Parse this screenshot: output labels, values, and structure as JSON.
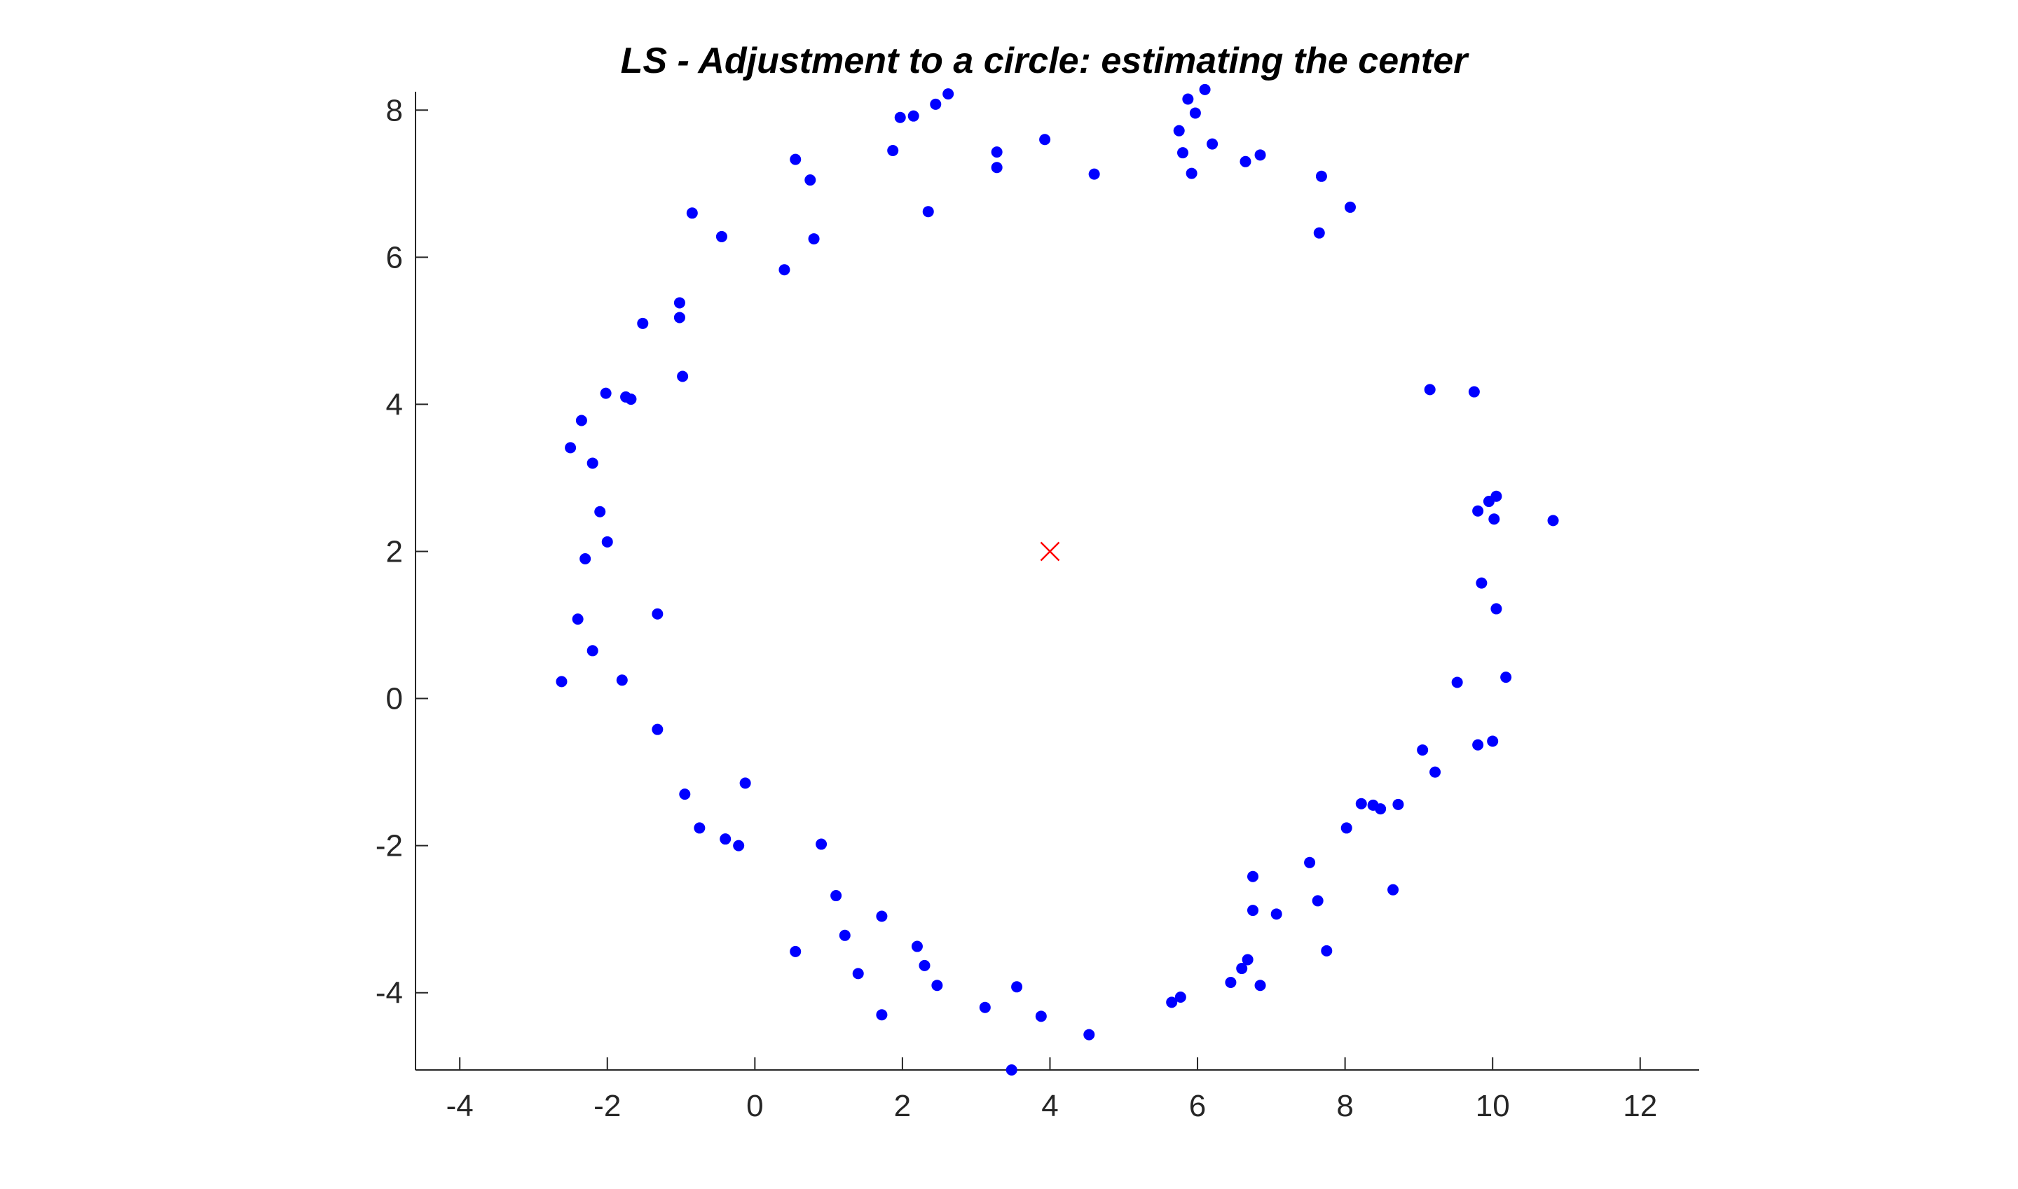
{
  "chart_data": {
    "type": "scatter",
    "title": "LS - Adjustment to a circle: estimating the center",
    "xlabel": "",
    "ylabel": "",
    "xlim": [
      -4.6,
      12.8
    ],
    "ylim": [
      -5.05,
      8.25
    ],
    "xticks": [
      -4,
      -2,
      0,
      2,
      4,
      6,
      8,
      10,
      12
    ],
    "yticks": [
      -4,
      -2,
      0,
      2,
      4,
      6,
      8
    ],
    "grid": false,
    "colors": {
      "points": "#0000ff",
      "center": "#ff0000",
      "axis": "#262626"
    },
    "series": [
      {
        "marker": "dot",
        "points": [
          [
            -2.62,
            0.23
          ],
          [
            -2.4,
            1.08
          ],
          [
            -2.2,
            0.65
          ],
          [
            -1.8,
            0.25
          ],
          [
            -2.3,
            1.9
          ],
          [
            -2.0,
            2.13
          ],
          [
            -2.1,
            2.54
          ],
          [
            -2.2,
            3.2
          ],
          [
            -2.5,
            3.41
          ],
          [
            -2.35,
            3.78
          ],
          [
            -2.02,
            4.15
          ],
          [
            -1.75,
            4.1
          ],
          [
            -1.68,
            4.07
          ],
          [
            -1.52,
            5.1
          ],
          [
            -1.02,
            5.18
          ],
          [
            -1.02,
            5.38
          ],
          [
            -0.98,
            4.38
          ],
          [
            -0.85,
            6.6
          ],
          [
            -0.45,
            6.28
          ],
          [
            0.4,
            5.83
          ],
          [
            0.8,
            6.25
          ],
          [
            0.55,
            7.33
          ],
          [
            0.75,
            7.05
          ],
          [
            1.87,
            7.45
          ],
          [
            1.97,
            7.9
          ],
          [
            2.15,
            7.92
          ],
          [
            2.45,
            8.08
          ],
          [
            2.62,
            8.22
          ],
          [
            2.35,
            6.62
          ],
          [
            3.28,
            7.43
          ],
          [
            3.28,
            7.22
          ],
          [
            3.93,
            7.6
          ],
          [
            4.6,
            7.13
          ],
          [
            5.75,
            7.72
          ],
          [
            5.87,
            8.15
          ],
          [
            5.97,
            7.96
          ],
          [
            6.1,
            8.28
          ],
          [
            5.8,
            7.42
          ],
          [
            5.92,
            7.14
          ],
          [
            6.2,
            7.54
          ],
          [
            6.65,
            7.3
          ],
          [
            6.85,
            7.39
          ],
          [
            7.68,
            7.1
          ],
          [
            7.65,
            6.33
          ],
          [
            8.07,
            6.68
          ],
          [
            9.15,
            4.2
          ],
          [
            9.75,
            4.17
          ],
          [
            9.8,
            2.55
          ],
          [
            9.95,
            2.68
          ],
          [
            10.05,
            2.75
          ],
          [
            10.02,
            2.44
          ],
          [
            10.82,
            2.42
          ],
          [
            9.85,
            1.57
          ],
          [
            10.05,
            1.22
          ],
          [
            9.52,
            0.22
          ],
          [
            10.18,
            0.29
          ],
          [
            9.05,
            -0.7
          ],
          [
            9.8,
            -0.63
          ],
          [
            10.0,
            -0.58
          ],
          [
            9.22,
            -1.0
          ],
          [
            8.22,
            -1.43
          ],
          [
            8.38,
            -1.45
          ],
          [
            8.48,
            -1.5
          ],
          [
            8.72,
            -1.44
          ],
          [
            8.02,
            -1.76
          ],
          [
            7.52,
            -2.23
          ],
          [
            8.65,
            -2.6
          ],
          [
            7.63,
            -2.75
          ],
          [
            6.75,
            -2.42
          ],
          [
            6.75,
            -2.88
          ],
          [
            7.07,
            -2.93
          ],
          [
            7.75,
            -3.43
          ],
          [
            6.68,
            -3.55
          ],
          [
            6.6,
            -3.67
          ],
          [
            6.45,
            -3.86
          ],
          [
            6.85,
            -3.9
          ],
          [
            5.77,
            -4.06
          ],
          [
            5.65,
            -4.13
          ],
          [
            4.53,
            -4.57
          ],
          [
            3.88,
            -4.32
          ],
          [
            3.55,
            -3.92
          ],
          [
            3.12,
            -4.2
          ],
          [
            3.48,
            -5.05
          ],
          [
            2.47,
            -3.9
          ],
          [
            2.3,
            -3.63
          ],
          [
            2.2,
            -3.37
          ],
          [
            1.72,
            -2.96
          ],
          [
            1.72,
            -4.3
          ],
          [
            1.4,
            -3.74
          ],
          [
            1.22,
            -3.22
          ],
          [
            1.1,
            -2.68
          ],
          [
            0.9,
            -1.98
          ],
          [
            0.55,
            -3.44
          ],
          [
            -0.13,
            -1.15
          ],
          [
            -0.4,
            -1.91
          ],
          [
            -0.22,
            -2.0
          ],
          [
            -0.75,
            -1.76
          ],
          [
            -0.95,
            -1.3
          ],
          [
            -1.32,
            -0.42
          ],
          [
            -1.32,
            1.15
          ]
        ]
      },
      {
        "marker": "x",
        "points": [
          [
            4.0,
            2.0
          ]
        ]
      }
    ]
  }
}
